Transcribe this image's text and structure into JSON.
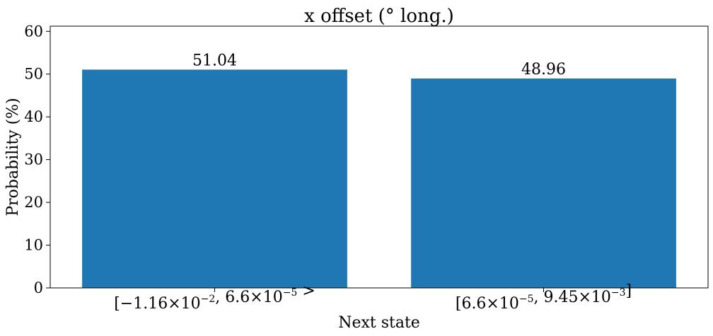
{
  "chart_data": {
    "type": "bar",
    "title": "x offset (° long.)",
    "xlabel": "Next state",
    "ylabel": "Probability (%)",
    "ylim": [
      0,
      61.2
    ],
    "yticks": [
      0,
      10,
      20,
      30,
      40,
      50,
      60
    ],
    "categories": [
      "[−1.16×10^−2, 6.6×10^−5 >",
      "[6.6×10^−5, 9.45×10^−3]"
    ],
    "values": [
      51.04,
      48.96
    ],
    "value_labels": [
      "51.04",
      "48.96"
    ],
    "bar_color": "#1f77b4",
    "grid": false
  }
}
